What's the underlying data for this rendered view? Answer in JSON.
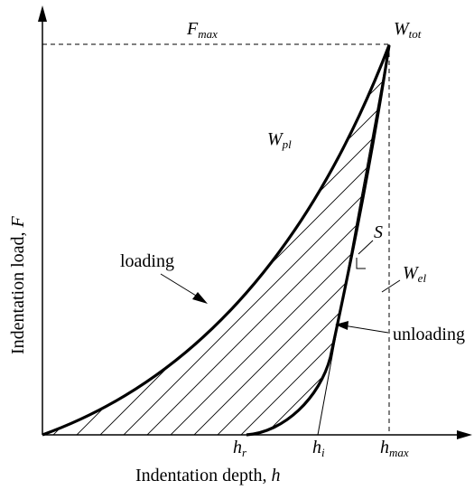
{
  "axes": {
    "y_title": "Indentation load, ",
    "y_var": "F",
    "x_title": "Indentation depth, ",
    "x_var": "h"
  },
  "labels": {
    "fmax_main": "F",
    "fmax_sub": "max",
    "wtot_main": "W",
    "wtot_sub": "tot",
    "wpl_main": "W",
    "wpl_sub": "pl",
    "wel_main": "W",
    "wel_sub": "el",
    "s": "S",
    "loading": "loading",
    "unloading": "unloading",
    "hr_main": "h",
    "hr_sub": "r",
    "hi_main": "h",
    "hi_sub": "i",
    "hmax_main": "h",
    "hmax_sub": "max"
  }
}
